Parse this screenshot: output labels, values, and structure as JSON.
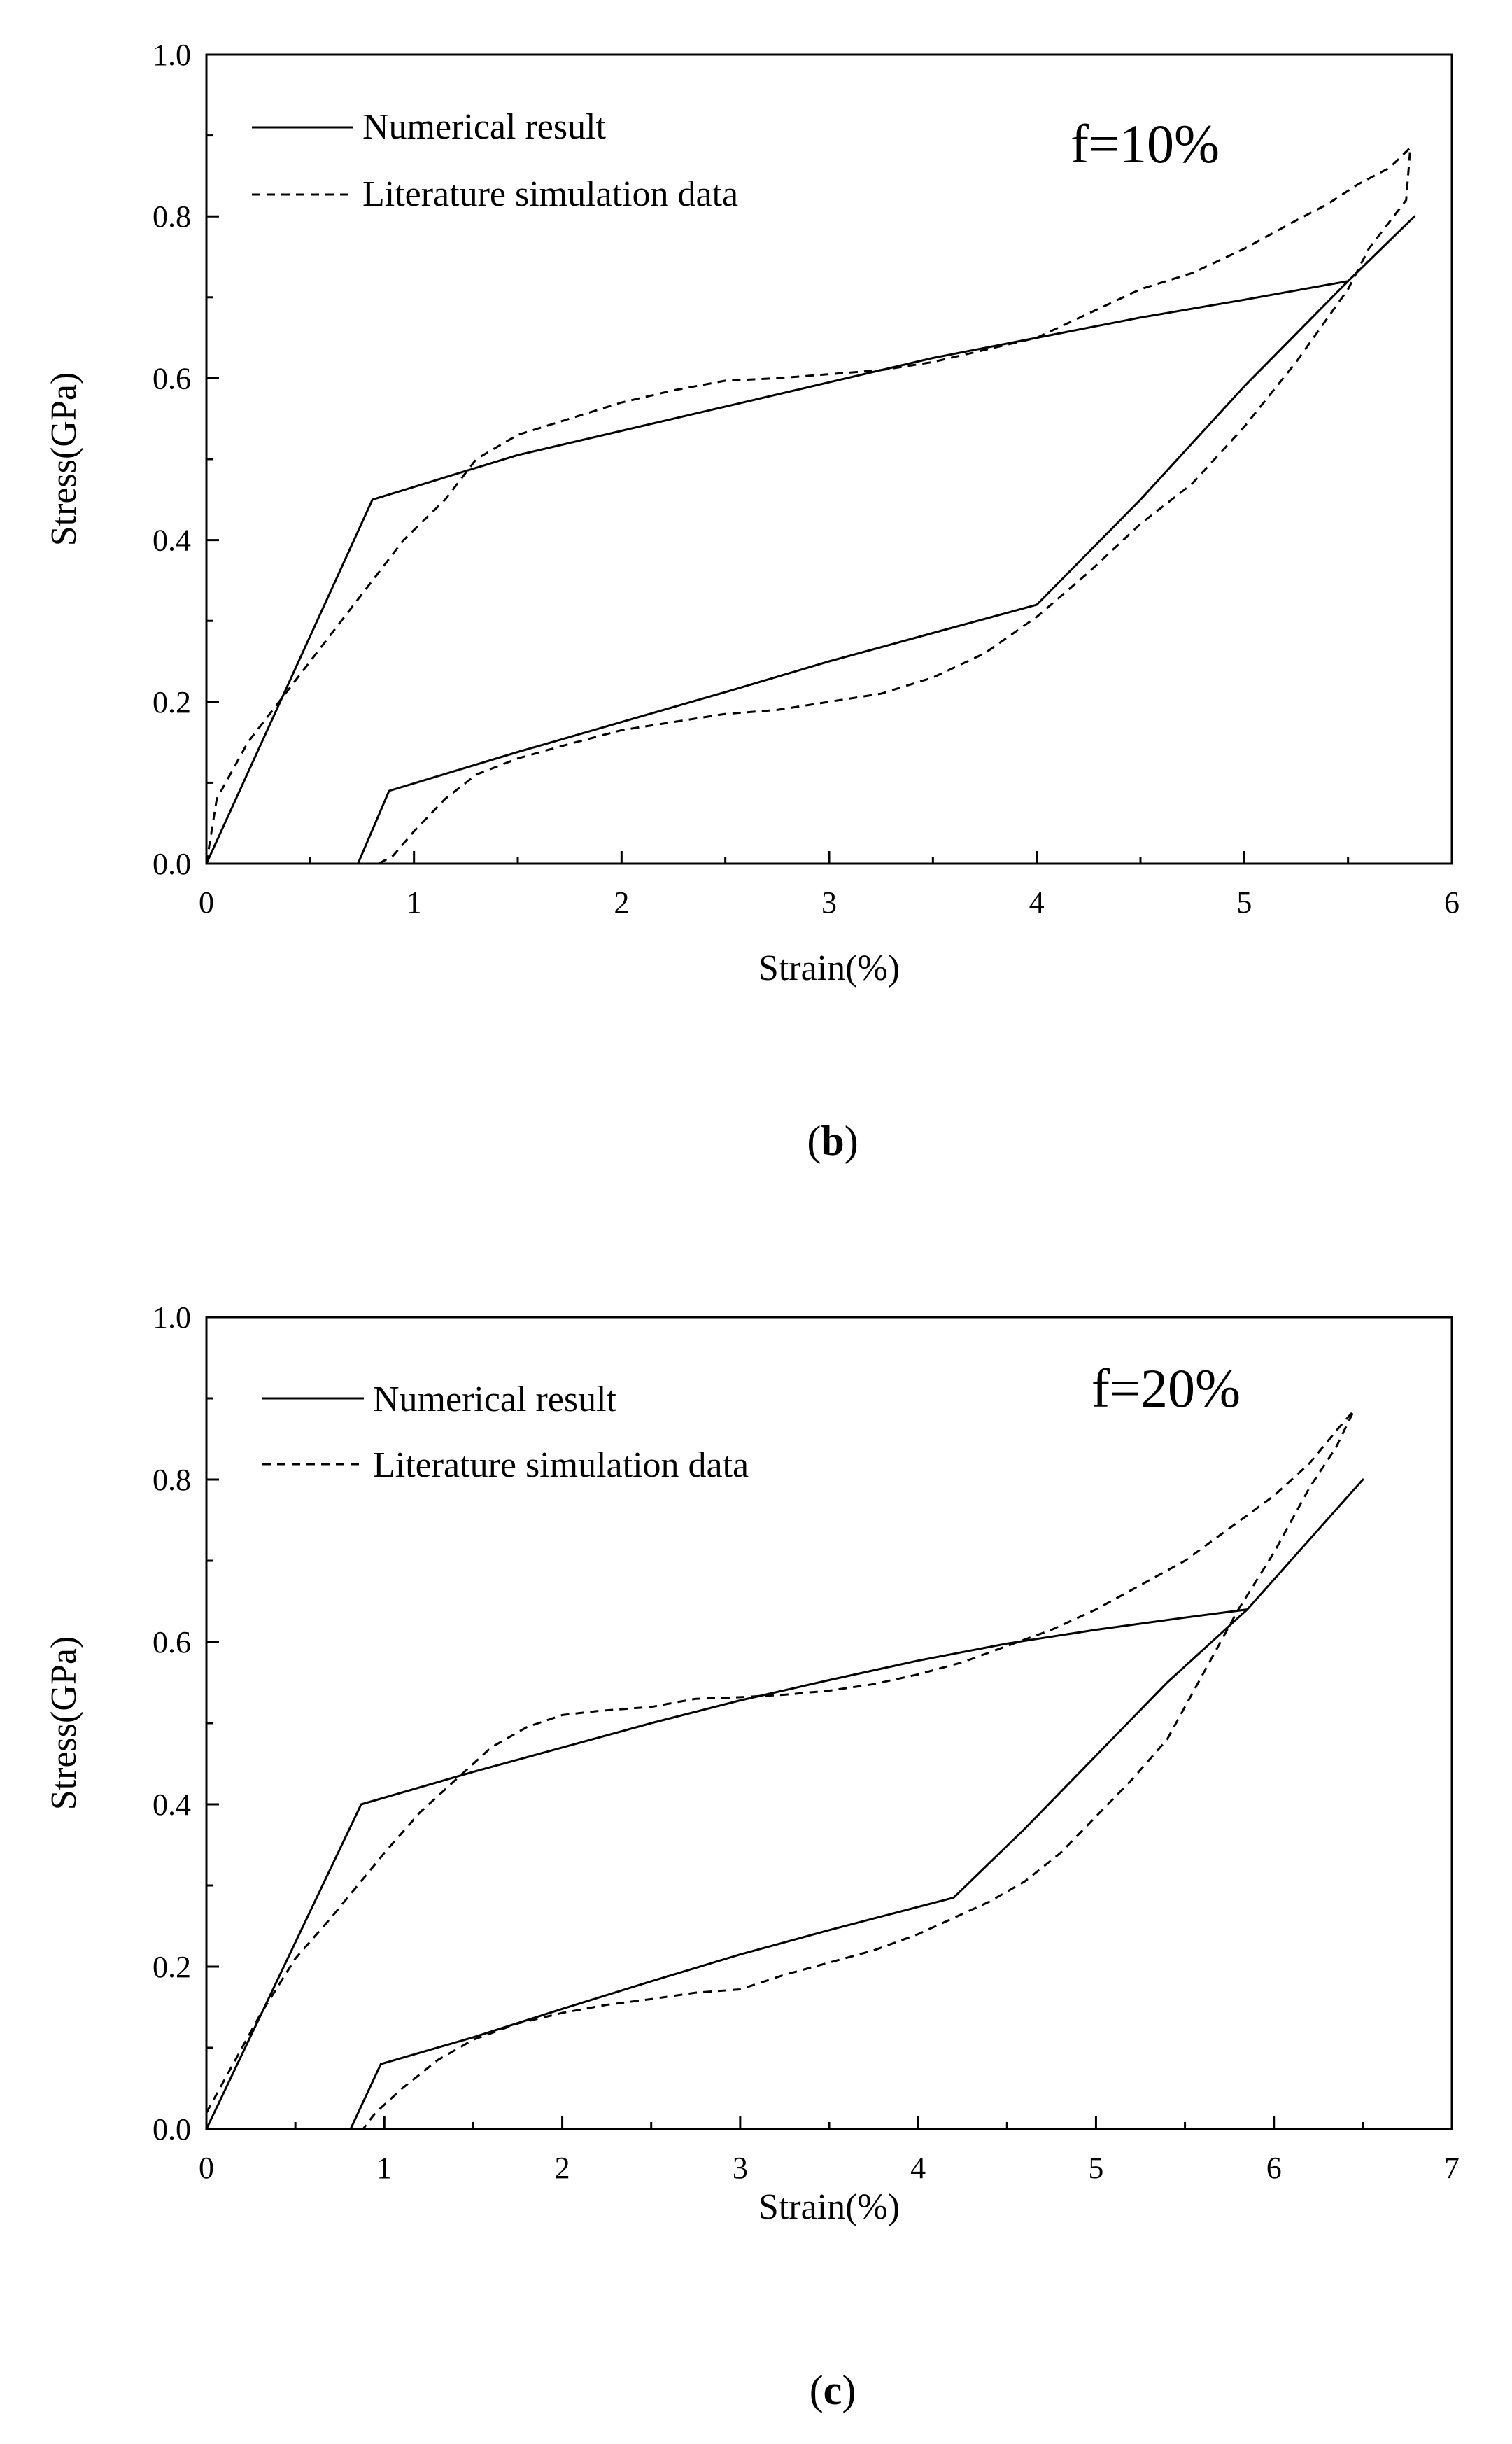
{
  "chart_data": [
    {
      "type": "line",
      "panel_label": "b",
      "annotation": "f=10%",
      "title": "",
      "xlabel": "Strain(%)",
      "ylabel": "Stress(GPa)",
      "xlim": [
        0,
        6
      ],
      "ylim": [
        0,
        1.0
      ],
      "xticks": [
        "0",
        "1",
        "2",
        "3",
        "4",
        "5",
        "6"
      ],
      "yticks": [
        "0.0",
        "0.2",
        "0.4",
        "0.6",
        "0.8",
        "1.0"
      ],
      "grid": false,
      "legend_position": "top-left",
      "series": [
        {
          "name": "Numerical result",
          "style": "solid",
          "points": [
            [
              0.0,
              0.0
            ],
            [
              0.8,
              0.45
            ],
            [
              1.5,
              0.505
            ],
            [
              2.0,
              0.535
            ],
            [
              2.5,
              0.565
            ],
            [
              3.0,
              0.595
            ],
            [
              3.5,
              0.625
            ],
            [
              4.0,
              0.65
            ],
            [
              4.5,
              0.675
            ],
            [
              5.0,
              0.697
            ],
            [
              5.5,
              0.72
            ],
            [
              5.82,
              0.8
            ],
            [
              5.5,
              0.72
            ],
            [
              5.0,
              0.59
            ],
            [
              4.5,
              0.45
            ],
            [
              4.0,
              0.32
            ],
            [
              3.5,
              0.285
            ],
            [
              3.0,
              0.25
            ],
            [
              2.5,
              0.212
            ],
            [
              2.0,
              0.175
            ],
            [
              1.5,
              0.138
            ],
            [
              0.88,
              0.09
            ],
            [
              0.73,
              0.0
            ]
          ]
        },
        {
          "name": "Literature simulation data",
          "style": "dashed",
          "points": [
            [
              0.0,
              0.0
            ],
            [
              0.05,
              0.08
            ],
            [
              0.2,
              0.15
            ],
            [
              0.35,
              0.2
            ],
            [
              0.5,
              0.25
            ],
            [
              0.65,
              0.3
            ],
            [
              0.8,
              0.35
            ],
            [
              0.95,
              0.4
            ],
            [
              1.15,
              0.45
            ],
            [
              1.3,
              0.5
            ],
            [
              1.5,
              0.53
            ],
            [
              1.75,
              0.55
            ],
            [
              2.0,
              0.57
            ],
            [
              2.25,
              0.585
            ],
            [
              2.5,
              0.597
            ],
            [
              2.75,
              0.6
            ],
            [
              3.0,
              0.605
            ],
            [
              3.25,
              0.61
            ],
            [
              3.5,
              0.62
            ],
            [
              3.75,
              0.635
            ],
            [
              4.0,
              0.65
            ],
            [
              4.25,
              0.68
            ],
            [
              4.5,
              0.71
            ],
            [
              4.75,
              0.73
            ],
            [
              5.0,
              0.76
            ],
            [
              5.25,
              0.795
            ],
            [
              5.4,
              0.815
            ],
            [
              5.55,
              0.84
            ],
            [
              5.7,
              0.86
            ],
            [
              5.8,
              0.885
            ],
            [
              5.78,
              0.82
            ],
            [
              5.6,
              0.76
            ],
            [
              5.5,
              0.71
            ],
            [
              5.25,
              0.62
            ],
            [
              5.0,
              0.54
            ],
            [
              4.75,
              0.47
            ],
            [
              4.5,
              0.42
            ],
            [
              4.25,
              0.36
            ],
            [
              4.0,
              0.305
            ],
            [
              3.75,
              0.26
            ],
            [
              3.5,
              0.23
            ],
            [
              3.25,
              0.21
            ],
            [
              3.0,
              0.2
            ],
            [
              2.75,
              0.19
            ],
            [
              2.5,
              0.185
            ],
            [
              2.25,
              0.175
            ],
            [
              2.0,
              0.165
            ],
            [
              1.75,
              0.148
            ],
            [
              1.5,
              0.13
            ],
            [
              1.3,
              0.11
            ],
            [
              1.15,
              0.08
            ],
            [
              1.0,
              0.04
            ],
            [
              0.9,
              0.01
            ],
            [
              0.83,
              0.0
            ]
          ]
        }
      ]
    },
    {
      "type": "line",
      "panel_label": "c",
      "annotation": "f=20%",
      "title": "",
      "xlabel": "Strain(%)",
      "ylabel": "Stress(GPa)",
      "xlim": [
        0,
        7
      ],
      "ylim": [
        0,
        1.0
      ],
      "xticks": [
        "0",
        "1",
        "2",
        "3",
        "4",
        "5",
        "6",
        "7"
      ],
      "yticks": [
        "0.0",
        "0.2",
        "0.4",
        "0.6",
        "0.8",
        "1.0"
      ],
      "grid": false,
      "legend_position": "top-left",
      "series": [
        {
          "name": "Numerical result",
          "style": "solid",
          "points": [
            [
              0.0,
              0.0
            ],
            [
              0.87,
              0.4
            ],
            [
              1.5,
              0.44
            ],
            [
              2.0,
              0.47
            ],
            [
              2.5,
              0.5
            ],
            [
              3.0,
              0.528
            ],
            [
              3.5,
              0.553
            ],
            [
              4.0,
              0.577
            ],
            [
              4.5,
              0.598
            ],
            [
              5.0,
              0.615
            ],
            [
              5.5,
              0.63
            ],
            [
              5.85,
              0.64
            ],
            [
              6.5,
              0.8
            ],
            [
              5.85,
              0.64
            ],
            [
              5.4,
              0.55
            ],
            [
              5.0,
              0.46
            ],
            [
              4.6,
              0.37
            ],
            [
              4.2,
              0.285
            ],
            [
              3.5,
              0.245
            ],
            [
              3.0,
              0.215
            ],
            [
              2.5,
              0.182
            ],
            [
              2.0,
              0.148
            ],
            [
              1.5,
              0.113
            ],
            [
              0.98,
              0.08
            ],
            [
              0.81,
              0.0
            ]
          ]
        },
        {
          "name": "Literature simulation data",
          "style": "dashed",
          "points": [
            [
              0.0,
              0.02
            ],
            [
              0.1,
              0.06
            ],
            [
              0.3,
              0.14
            ],
            [
              0.5,
              0.21
            ],
            [
              0.7,
              0.26
            ],
            [
              0.85,
              0.3
            ],
            [
              1.0,
              0.34
            ],
            [
              1.2,
              0.39
            ],
            [
              1.4,
              0.43
            ],
            [
              1.6,
              0.47
            ],
            [
              1.8,
              0.495
            ],
            [
              2.0,
              0.51
            ],
            [
              2.2,
              0.515
            ],
            [
              2.5,
              0.52
            ],
            [
              2.75,
              0.53
            ],
            [
              3.0,
              0.532
            ],
            [
              3.25,
              0.535
            ],
            [
              3.5,
              0.54
            ],
            [
              3.75,
              0.548
            ],
            [
              4.0,
              0.56
            ],
            [
              4.25,
              0.575
            ],
            [
              4.5,
              0.595
            ],
            [
              4.75,
              0.615
            ],
            [
              5.0,
              0.64
            ],
            [
              5.25,
              0.67
            ],
            [
              5.5,
              0.7
            ],
            [
              5.75,
              0.74
            ],
            [
              6.0,
              0.78
            ],
            [
              6.2,
              0.82
            ],
            [
              6.35,
              0.86
            ],
            [
              6.45,
              0.885
            ],
            [
              6.35,
              0.84
            ],
            [
              6.2,
              0.79
            ],
            [
              6.0,
              0.71
            ],
            [
              5.8,
              0.64
            ],
            [
              5.6,
              0.56
            ],
            [
              5.4,
              0.48
            ],
            [
              5.2,
              0.43
            ],
            [
              5.0,
              0.385
            ],
            [
              4.8,
              0.34
            ],
            [
              4.6,
              0.305
            ],
            [
              4.4,
              0.28
            ],
            [
              4.2,
              0.26
            ],
            [
              4.0,
              0.24
            ],
            [
              3.75,
              0.22
            ],
            [
              3.5,
              0.205
            ],
            [
              3.25,
              0.19
            ],
            [
              3.0,
              0.172
            ],
            [
              2.75,
              0.168
            ],
            [
              2.5,
              0.16
            ],
            [
              2.25,
              0.153
            ],
            [
              2.0,
              0.143
            ],
            [
              1.75,
              0.13
            ],
            [
              1.5,
              0.11
            ],
            [
              1.3,
              0.085
            ],
            [
              1.1,
              0.05
            ],
            [
              0.95,
              0.02
            ],
            [
              0.88,
              0.0
            ]
          ]
        }
      ]
    }
  ]
}
